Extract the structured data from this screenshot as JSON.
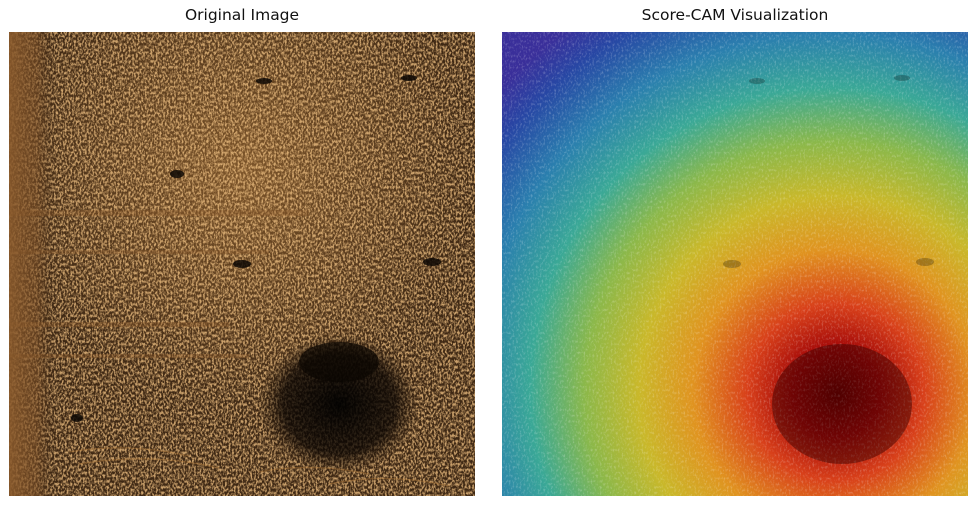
{
  "panels": [
    {
      "title": "Original Image"
    },
    {
      "title": "Score-CAM Visualization"
    }
  ]
}
